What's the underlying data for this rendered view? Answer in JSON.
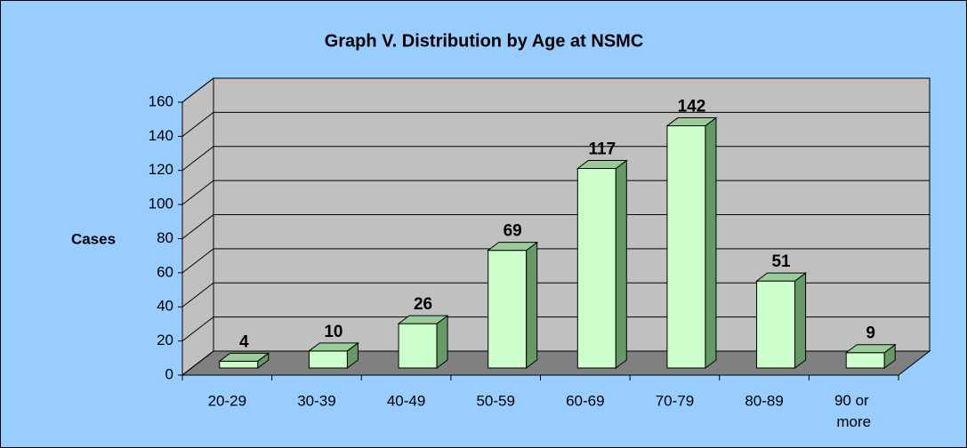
{
  "chart_data": {
    "type": "bar3d",
    "title": "Graph V. Distribution by Age at NSMC",
    "y_label": "Cases",
    "categories": [
      "20-29",
      "30-39",
      "40-49",
      "50-59",
      "60-69",
      "70-79",
      "80-89",
      "90 or more"
    ],
    "values": [
      4,
      10,
      26,
      69,
      117,
      142,
      51,
      9
    ],
    "color": "#CCFFCC",
    "ylim": [
      0,
      160
    ],
    "yticks": [
      0,
      20,
      40,
      60,
      80,
      100,
      120,
      140,
      160
    ],
    "grid": true
  }
}
